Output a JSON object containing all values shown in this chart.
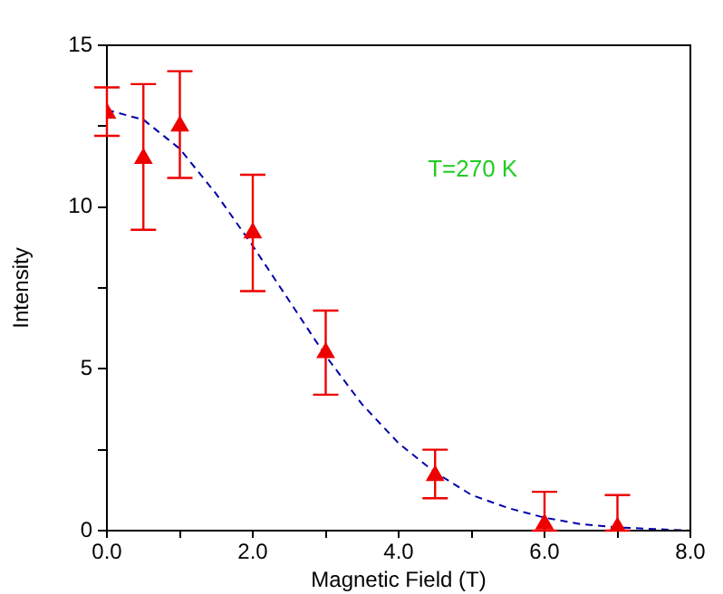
{
  "chart_data": {
    "type": "scatter",
    "xlabel": "Magnetic Field (T)",
    "ylabel": "Intensity",
    "xlim": [
      0,
      8
    ],
    "ylim": [
      0,
      15
    ],
    "xticks": [
      {
        "value": 0,
        "label": "0.0"
      },
      {
        "value": 1,
        "label": null
      },
      {
        "value": 2,
        "label": "2.0"
      },
      {
        "value": 3,
        "label": null
      },
      {
        "value": 4,
        "label": "4.0"
      },
      {
        "value": 5,
        "label": null
      },
      {
        "value": 6,
        "label": "6.0"
      },
      {
        "value": 7,
        "label": null
      },
      {
        "value": 8,
        "label": "8.0"
      }
    ],
    "yticks": [
      0,
      {
        "value": 2.5,
        "label": null
      },
      5,
      {
        "value": 7.5,
        "label": null
      },
      10,
      {
        "value": 12.5,
        "label": null
      },
      15
    ],
    "grid": false,
    "legend": false,
    "annotations": [
      "T=270 K"
    ],
    "series": [
      {
        "color": "#ee0000",
        "marker": "triangle",
        "x": [
          0,
          0.5,
          1,
          2,
          3,
          4.5,
          6,
          7
        ],
        "values": [
          12.9,
          11.5,
          12.5,
          9.2,
          5.5,
          1.7,
          0.2,
          0.1
        ],
        "errors": [
          [
            12.2,
            13.7
          ],
          [
            9.3,
            13.8
          ],
          [
            10.9,
            14.2
          ],
          [
            7.4,
            11.0
          ],
          [
            4.2,
            6.8
          ],
          [
            1.0,
            2.5
          ],
          [
            0,
            1.2
          ],
          [
            0,
            1.1
          ]
        ]
      },
      {
        "type": "line",
        "color": "#0000aa",
        "marker": "none",
        "line_style": "dashed",
        "x": [
          0,
          0.5,
          1,
          1.5,
          2,
          2.5,
          3,
          3.5,
          4,
          4.5,
          5,
          5.5,
          6,
          6.5,
          7,
          7.5,
          8
        ],
        "values": [
          13.0,
          12.7,
          11.8,
          10.4,
          8.8,
          7.1,
          5.4,
          3.9,
          2.7,
          1.8,
          1.1,
          0.7,
          0.4,
          0.2,
          0.1,
          0.05,
          0
        ]
      }
    ]
  }
}
